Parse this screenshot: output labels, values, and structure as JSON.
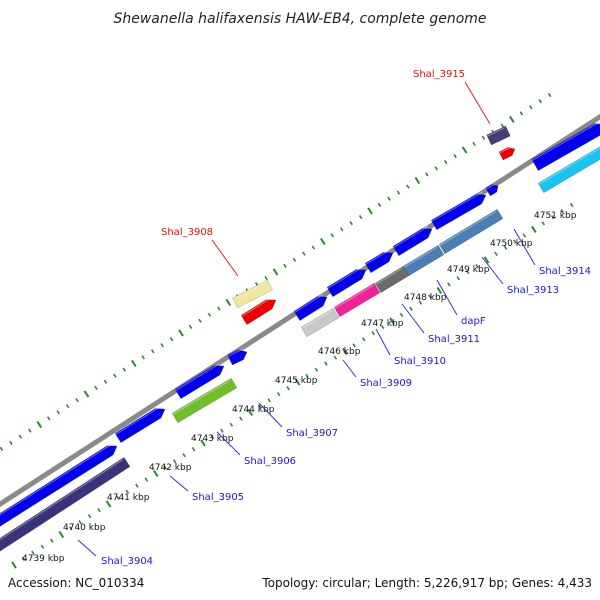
{
  "title": "Shewanella halifaxensis HAW-EB4, complete genome",
  "footer": {
    "accession": "Accession: NC_010334",
    "summary": "Topology: circular; Length: 5,226,917 bp; Genes: 4,433"
  },
  "colors": {
    "blue": "#0000ee",
    "navy": "#3a327a",
    "backbone": "#8a8a8a",
    "tick": "#2a8a2a",
    "label_blue": "#1a1acc",
    "label_red": "#dd1111",
    "leader": "#3333cc"
  },
  "kbp_labels": [
    "4739 kbp",
    "4740 kbp",
    "4741 kbp",
    "4742 kbp",
    "4743 kbp",
    "4744 kbp",
    "4745 kbp",
    "4746 kbp",
    "4747 kbp",
    "4748 kbp",
    "4749 kbp",
    "4750 kbp",
    "4751 kbp"
  ],
  "genes": [
    {
      "label": "Shal_3904",
      "color": "blue"
    },
    {
      "label": "Shal_3905",
      "color": "blue"
    },
    {
      "label": "Shal_3906",
      "color": "blue"
    },
    {
      "label": "Shal_3907",
      "color": "blue"
    },
    {
      "label": "Shal_3908",
      "color": "red"
    },
    {
      "label": "Shal_3909",
      "color": "blue"
    },
    {
      "label": "Shal_3910",
      "color": "blue"
    },
    {
      "label": "Shal_3911",
      "color": "blue"
    },
    {
      "label": "dapF",
      "color": "blue"
    },
    {
      "label": "Shal_3913",
      "color": "blue"
    },
    {
      "label": "Shal_3914",
      "color": "blue"
    },
    {
      "label": "Shal_3915",
      "color": "red"
    }
  ]
}
